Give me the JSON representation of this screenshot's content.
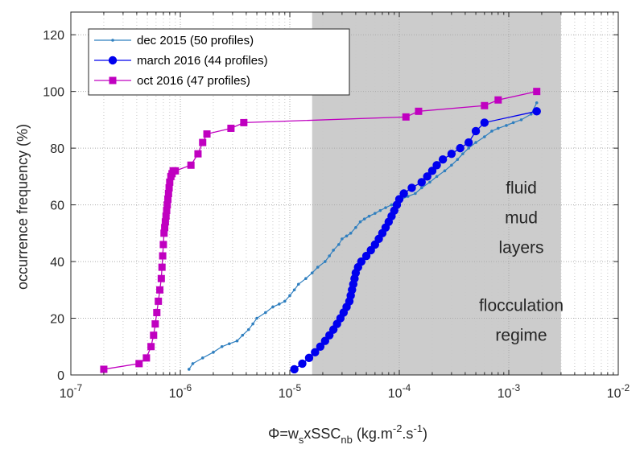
{
  "chart_data": {
    "type": "line",
    "xscale": "log",
    "xlim": [
      1e-07,
      0.01
    ],
    "ylim": [
      0,
      128
    ],
    "grid": true,
    "legend_position": "top-left",
    "xlabel": {
      "base": "Φ=w",
      "sub1": "s",
      "mid": "xSSC",
      "sub2": "nb",
      "unit_open": " (kg.m",
      "sup1": "-2",
      "unit_mid": ".s",
      "sup2": "-1",
      "unit_close": ")"
    },
    "ylabel": "occurrence frequency (%)",
    "x_ticks": [
      {
        "value": 1e-07,
        "base": "10",
        "exp": "-7"
      },
      {
        "value": 1e-06,
        "base": "10",
        "exp": "-6"
      },
      {
        "value": 1e-05,
        "base": "10",
        "exp": "-5"
      },
      {
        "value": 0.0001,
        "base": "10",
        "exp": "-4"
      },
      {
        "value": 0.001,
        "base": "10",
        "exp": "-3"
      },
      {
        "value": 0.01,
        "base": "10",
        "exp": "-2"
      }
    ],
    "y_ticks": [
      {
        "value": 0,
        "label": "0"
      },
      {
        "value": 20,
        "label": "20"
      },
      {
        "value": 40,
        "label": "40"
      },
      {
        "value": 60,
        "label": "60"
      },
      {
        "value": 80,
        "label": "80"
      },
      {
        "value": 100,
        "label": "100"
      },
      {
        "value": 120,
        "label": "120"
      }
    ],
    "shaded_region": {
      "x_start": 1.6e-05,
      "x_end": 0.003,
      "color": "#cccccc"
    },
    "annotations": [
      {
        "lines": [
          "fluid",
          "mud",
          "layers"
        ],
        "x": 0.0013,
        "y": [
          64,
          53.5,
          43
        ]
      },
      {
        "lines": [
          "flocculation",
          "regime"
        ],
        "x": 0.0013,
        "y": [
          22.5,
          12
        ]
      }
    ],
    "series": [
      {
        "name": "dec 2015 (50 profiles)",
        "color": "#2f7fbf",
        "marker": "dot",
        "x": [
          1.2e-06,
          1.3e-06,
          1.6e-06,
          2e-06,
          2.4e-06,
          2.8e-06,
          3.3e-06,
          3.7e-06,
          4.2e-06,
          4.6e-06,
          5e-06,
          6e-06,
          7e-06,
          8e-06,
          9e-06,
          1e-05,
          1.1e-05,
          1.2e-05,
          1.4e-05,
          1.6e-05,
          1.8e-05,
          2.1e-05,
          2.3e-05,
          2.5e-05,
          2.8e-05,
          3e-05,
          3.3e-05,
          3.6e-05,
          4e-05,
          4.4e-05,
          4.8e-05,
          5.3e-05,
          6e-05,
          6.7e-05,
          7.5e-05,
          8.5e-05,
          9.5e-05,
          0.000105,
          0.00012,
          0.00014,
          0.00016,
          0.00019,
          0.00022,
          0.00026,
          0.0003,
          0.00034,
          0.00038,
          0.00043,
          0.0005,
          0.0006,
          0.0007,
          0.0008,
          0.00095,
          0.0011,
          0.0013,
          0.0016,
          0.0018
        ],
        "y": [
          2,
          4,
          6,
          8,
          10,
          11,
          12,
          14,
          16,
          18,
          20,
          22,
          24,
          25,
          26,
          28,
          30,
          32,
          34,
          36,
          38,
          40,
          42,
          44,
          46,
          48,
          49,
          50,
          52,
          54,
          55,
          56,
          57,
          58,
          59,
          60,
          61,
          62,
          63,
          64,
          66,
          68,
          70,
          72,
          74,
          76,
          78,
          80,
          82,
          84,
          86,
          87,
          88,
          89,
          90,
          92,
          96
        ]
      },
      {
        "name": "march 2016 (44 profiles)",
        "color": "#0000ee",
        "marker": "circle",
        "x": [
          1.1e-05,
          1.3e-05,
          1.5e-05,
          1.7e-05,
          1.9e-05,
          2.1e-05,
          2.3e-05,
          2.5e-05,
          2.7e-05,
          2.9e-05,
          3.1e-05,
          3.3e-05,
          3.5e-05,
          3.6e-05,
          3.7e-05,
          3.8e-05,
          3.9e-05,
          4e-05,
          4.2e-05,
          4.5e-05,
          5e-05,
          5.5e-05,
          6e-05,
          6.5e-05,
          7e-05,
          7.5e-05,
          8e-05,
          8.5e-05,
          9e-05,
          9.5e-05,
          0.0001,
          0.00011,
          0.00013,
          0.00016,
          0.00018,
          0.0002,
          0.00022,
          0.00025,
          0.0003,
          0.00036,
          0.00043,
          0.0005,
          0.0006,
          0.0018
        ],
        "y": [
          2,
          4,
          6,
          8,
          10,
          12,
          14,
          16,
          18,
          20,
          22,
          24,
          26,
          28,
          30,
          32,
          34,
          36,
          38,
          40,
          42,
          44,
          46,
          48,
          50,
          52,
          54,
          56,
          58,
          60,
          62,
          64,
          66,
          68,
          70,
          72,
          74,
          76,
          78,
          80,
          82,
          86,
          89,
          93
        ]
      },
      {
        "name": "oct 2016 (47 profiles)",
        "color": "#c000c0",
        "marker": "square",
        "x": [
          2e-07,
          4.2e-07,
          4.9e-07,
          5.4e-07,
          5.7e-07,
          5.9e-07,
          6.1e-07,
          6.3e-07,
          6.5e-07,
          6.7e-07,
          6.8e-07,
          6.9e-07,
          7e-07,
          7.1e-07,
          7.2e-07,
          7.3e-07,
          7.4e-07,
          7.5e-07,
          7.6e-07,
          7.7e-07,
          7.8e-07,
          7.9e-07,
          8e-07,
          8.2e-07,
          8.4e-07,
          8.6e-07,
          9e-07,
          1.25e-06,
          1.45e-06,
          1.6e-06,
          1.75e-06,
          2.9e-06,
          3.8e-06,
          0.000115,
          0.00015,
          0.0006,
          0.0008,
          0.0018
        ],
        "y": [
          2,
          4,
          6,
          10,
          14,
          18,
          22,
          26,
          30,
          34,
          38,
          42,
          46,
          50,
          52,
          54,
          56,
          58,
          60,
          62,
          64,
          66,
          68,
          70,
          71,
          72,
          72,
          74,
          78,
          82,
          85,
          87,
          89,
          91,
          93,
          95,
          97,
          100
        ]
      }
    ]
  }
}
